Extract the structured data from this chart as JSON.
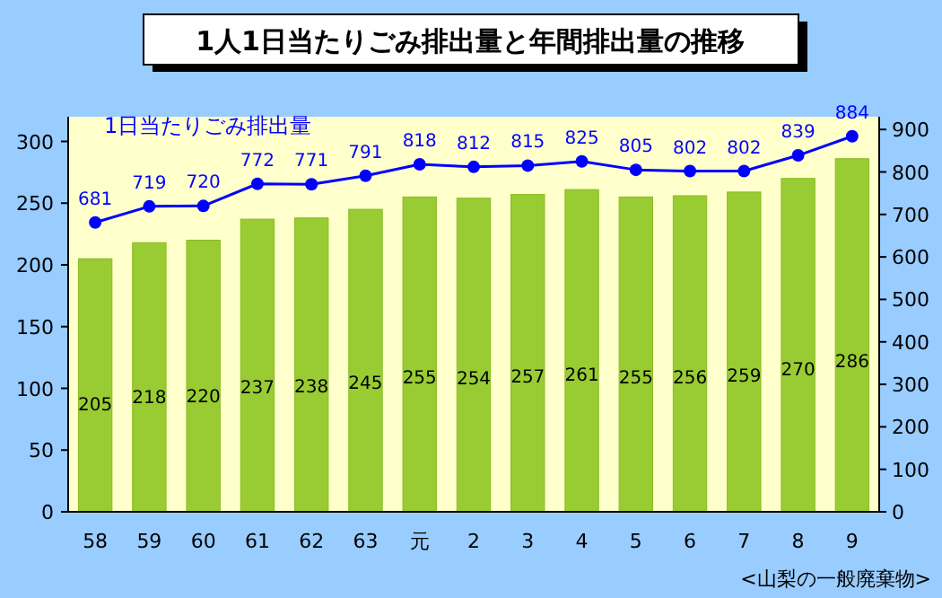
{
  "chart_data": {
    "type": "bar",
    "title": "1人1日当たりごみ排出量と年間排出量の推移",
    "categories": [
      "58",
      "59",
      "60",
      "61",
      "62",
      "63",
      "元",
      "2",
      "3",
      "4",
      "5",
      "6",
      "7",
      "8",
      "9"
    ],
    "series": [
      {
        "color": "#99cc33",
        "values": [
          205,
          218,
          220,
          237,
          238,
          245,
          255,
          254,
          257,
          261,
          255,
          256,
          259,
          270,
          286
        ]
      },
      {
        "type": "line",
        "name": "1日当たりごみ排出量",
        "color": "#0000ff",
        "axis": "y2",
        "marker": "circle",
        "values": [
          681,
          719,
          720,
          772,
          771,
          791,
          818,
          812,
          815,
          825,
          805,
          802,
          802,
          839,
          884
        ]
      }
    ],
    "ylim": [
      0,
      320
    ],
    "yticks": [
      0,
      50,
      100,
      150,
      200,
      250,
      300
    ],
    "y2lim": [
      0,
      930
    ],
    "y2ticks": [
      0,
      100,
      200,
      300,
      400,
      500,
      600,
      700,
      800,
      900
    ],
    "data_labels": true,
    "grid": false,
    "legend": "top left",
    "annotations": [
      "<山梨の一般廃棄物>"
    ]
  }
}
